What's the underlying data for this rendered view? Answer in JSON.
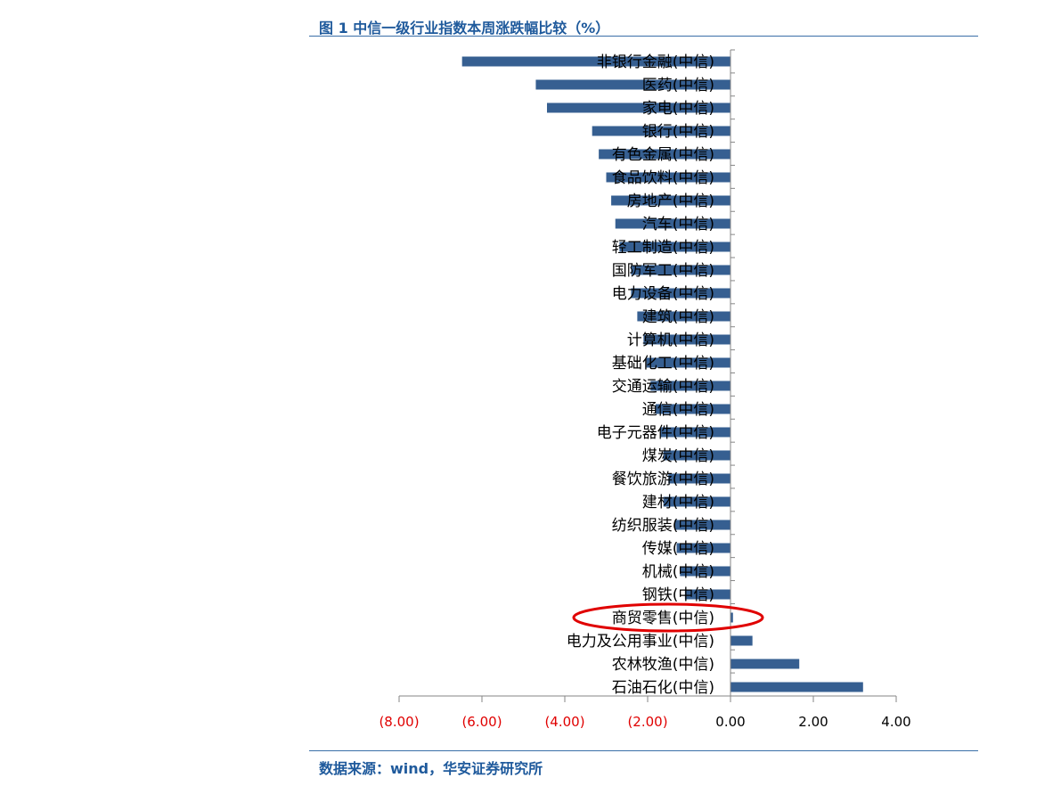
{
  "title": "图 1 中信一级行业指数本周涨跌幅比较（%）",
  "source": "数据来源：wind，华安证券研究所",
  "colors": {
    "bar": "#365f91",
    "axis": "#868686",
    "negative_tick": "#e00000",
    "positive_tick": "#000000",
    "header": "#1f5a9c",
    "highlight_ellipse": "#e00000"
  },
  "annotation": {
    "type": "ellipse",
    "target": "商贸零售(中信)",
    "color": "#e00000"
  },
  "chart_data": {
    "type": "bar",
    "orientation": "horizontal",
    "title": "图 1 中信一级行业指数本周涨跌幅比较（%）",
    "xlabel": "",
    "ylabel": "",
    "xlim": [
      -8,
      4
    ],
    "grid": false,
    "legend": "none",
    "x_ticks": [
      -8,
      -6,
      -4,
      -2,
      0,
      2,
      4
    ],
    "x_tick_labels": [
      "(8.00)",
      "(6.00)",
      "(4.00)",
      "(2.00)",
      "0.00",
      "2.00",
      "4.00"
    ],
    "categories": [
      "非银行金融(中信)",
      "医药(中信)",
      "家电(中信)",
      "银行(中信)",
      "有色金属(中信)",
      "食品饮料(中信)",
      "房地产(中信)",
      "汽车(中信)",
      "轻工制造(中信)",
      "国防军工(中信)",
      "电力设备(中信)",
      "建筑(中信)",
      "计算机(中信)",
      "基础化工(中信)",
      "交通运输(中信)",
      "通信(中信)",
      "电子元器件(中信)",
      "煤炭(中信)",
      "餐饮旅游(中信)",
      "建材(中信)",
      "纺织服装(中信)",
      "传媒(中信)",
      "机械(中信)",
      "钢铁(中信)",
      "商贸零售(中信)",
      "电力及公用事业(中信)",
      "农林牧渔(中信)",
      "石油石化(中信)"
    ],
    "values": [
      -6.48,
      -4.7,
      -4.43,
      -3.34,
      -3.18,
      -3.0,
      -2.88,
      -2.78,
      -2.68,
      -2.4,
      -2.4,
      -2.25,
      -2.1,
      -2.03,
      -1.93,
      -1.81,
      -1.7,
      -1.62,
      -1.5,
      -1.62,
      -1.35,
      -1.3,
      -1.22,
      -1.1,
      0.06,
      0.53,
      1.66,
      3.2
    ]
  }
}
